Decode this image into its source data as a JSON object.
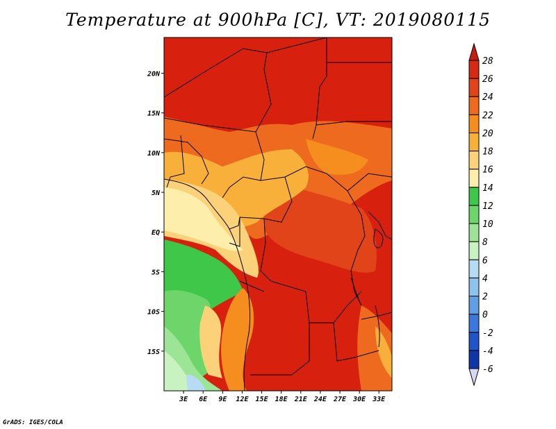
{
  "chart_data": {
    "type": "heatmap",
    "title": "Temperature at 900hPa [C], VT: 2019080115",
    "xlabel": "",
    "ylabel": "",
    "lon_range": [
      0,
      35
    ],
    "lat_range": [
      -20,
      24.5
    ],
    "x_ticks": [
      "3E",
      "6E",
      "9E",
      "12E",
      "15E",
      "18E",
      "21E",
      "24E",
      "27E",
      "30E",
      "33E"
    ],
    "x_tick_values": [
      3,
      6,
      9,
      12,
      15,
      18,
      21,
      24,
      27,
      30,
      33
    ],
    "y_ticks": [
      "20N",
      "15N",
      "10N",
      "5N",
      "EQ",
      "5S",
      "10S",
      "15S"
    ],
    "y_tick_values": [
      20,
      15,
      10,
      5,
      0,
      -5,
      -10,
      -15
    ],
    "colorbar": {
      "levels": [
        28,
        26,
        24,
        22,
        20,
        18,
        16,
        14,
        12,
        10,
        8,
        6,
        4,
        2,
        0,
        -2,
        -4,
        -6
      ],
      "colors": [
        "#d62a14",
        "#e2441a",
        "#ee6a1f",
        "#f58e1f",
        "#f9b03b",
        "#fbd27a",
        "#fdeeab",
        "#3fc74a",
        "#6ed56a",
        "#9de596",
        "#c8f2c0",
        "#b6dcf5",
        "#8ec3ee",
        "#5e9fe6",
        "#3c78dc",
        "#1f55c9",
        "#0d36a8",
        "#071870"
      ],
      "top_color": "#c41e10",
      "bottom_color": "#d8d8f5",
      "units": "C"
    },
    "grid": false,
    "legend": "colorbar-right"
  },
  "footer": {
    "credit": "GrADS: IGES/COLA"
  }
}
